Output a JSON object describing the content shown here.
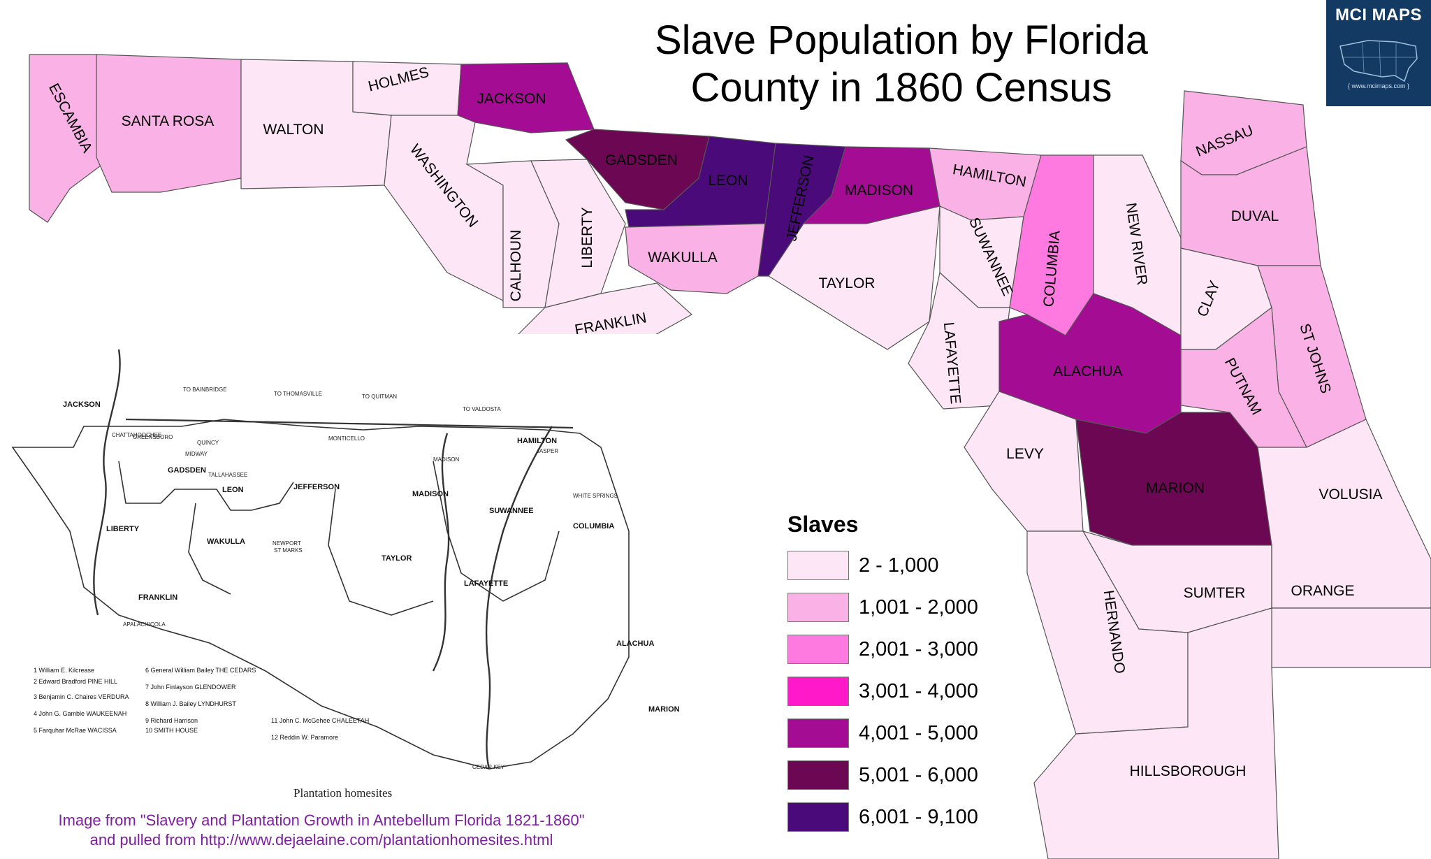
{
  "title_line1": "Slave Population by Florida",
  "title_line2": "County in 1860 Census",
  "logo": {
    "text": "MCI MAPS",
    "small_text": "{ www.mcimaps.com }",
    "bg": "#123a63"
  },
  "legend": {
    "title": "Slaves",
    "items": [
      {
        "label": "2 - 1,000",
        "color": "#fde6f5"
      },
      {
        "label": "1,001 - 2,000",
        "color": "#fab2e6"
      },
      {
        "label": "2,001 - 3,000",
        "color": "#fe7ae0"
      },
      {
        "label": "3,001 - 4,000",
        "color": "#ff19c8"
      },
      {
        "label": "4,001 - 5,000",
        "color": "#a30c93"
      },
      {
        "label": "5,001 - 6,000",
        "color": "#6c0753"
      },
      {
        "label": "6,001 - 9,100",
        "color": "#4a0a7a"
      }
    ]
  },
  "counties": [
    {
      "name": "ESCAMBIA",
      "class": 1
    },
    {
      "name": "SANTA ROSA",
      "class": 1
    },
    {
      "name": "WALTON",
      "class": 0
    },
    {
      "name": "HOLMES",
      "class": 0
    },
    {
      "name": "JACKSON",
      "class": 4
    },
    {
      "name": "WASHINGTON",
      "class": 0
    },
    {
      "name": "CALHOUN",
      "class": 0
    },
    {
      "name": "LIBERTY",
      "class": 0
    },
    {
      "name": "FRANKLIN",
      "class": 0
    },
    {
      "name": "GADSDEN",
      "class": 5
    },
    {
      "name": "LEON",
      "class": 6
    },
    {
      "name": "WAKULLA",
      "class": 1
    },
    {
      "name": "JEFFERSON",
      "class": 6
    },
    {
      "name": "MADISON",
      "class": 4
    },
    {
      "name": "TAYLOR",
      "class": 0
    },
    {
      "name": "HAMILTON",
      "class": 1
    },
    {
      "name": "SUWANNEE",
      "class": 0
    },
    {
      "name": "COLUMBIA",
      "class": 2
    },
    {
      "name": "LAFAYETTE",
      "class": 0
    },
    {
      "name": "NEW RIVER",
      "class": 0
    },
    {
      "name": "NASSAU",
      "class": 1
    },
    {
      "name": "DUVAL",
      "class": 1
    },
    {
      "name": "CLAY",
      "class": 0
    },
    {
      "name": "ST JOHNS",
      "class": 1
    },
    {
      "name": "PUTNAM",
      "class": 1
    },
    {
      "name": "ALACHUA",
      "class": 4
    },
    {
      "name": "LEVY",
      "class": 0
    },
    {
      "name": "MARION",
      "class": 5
    },
    {
      "name": "VOLUSIA",
      "class": 0
    },
    {
      "name": "SUMTER",
      "class": 0
    },
    {
      "name": "ORANGE",
      "class": 0
    },
    {
      "name": "HERNANDO",
      "class": 0
    },
    {
      "name": "HILLSBOROUGH",
      "class": 0
    }
  ],
  "inset": {
    "caption": "Plantation homesites",
    "map_labels": [
      "JACKSON",
      "GADSDEN",
      "LEON",
      "JEFFERSON",
      "MADISON",
      "HAMILTON",
      "SUWANNEE",
      "COLUMBIA",
      "LIBERTY",
      "WAKULLA",
      "TAYLOR",
      "LAFAYETTE",
      "FRANKLIN",
      "ALACHUA",
      "MARION"
    ],
    "place_labels": [
      "TO BAINBRIDGE",
      "TO THOMASVILLE",
      "TO QUITMAN",
      "TO VALDOSTA",
      "CHATTAHOOCHEE",
      "QUINCY",
      "GREENSBORO",
      "MIDWAY",
      "TALLAHASSEE",
      "MONTICELLO",
      "MADISON",
      "JASPER",
      "WHITE SPRINGS",
      "NEWPORT",
      "ST MARKS",
      "APALACHICOLA",
      "CEDAR KEY"
    ],
    "homesites": [
      "1  William E. Kilcrease",
      "2  Edward Bradford PINE HILL",
      "3  Benjamin C. Chaires VERDURA",
      "4  John G. Gamble WAUKEENAH",
      "5  Farquhar McRae WACISSA",
      "6  General William Bailey THE CEDARS",
      "7  John Finlayson GLENDOWER",
      "8  William J. Bailey LYNDHURST",
      "9  Richard Harrison",
      "10  SMITH HOUSE",
      "11  John C. McGehee CHALEETAH",
      "12  Reddin W. Paramore"
    ]
  },
  "credit_line1": "Image from \"Slavery and Plantation Growth in Antebellum Florida 1821-1860\"",
  "credit_line2": "and pulled from http://www.dejaelaine.com/plantationhomesites.html"
}
